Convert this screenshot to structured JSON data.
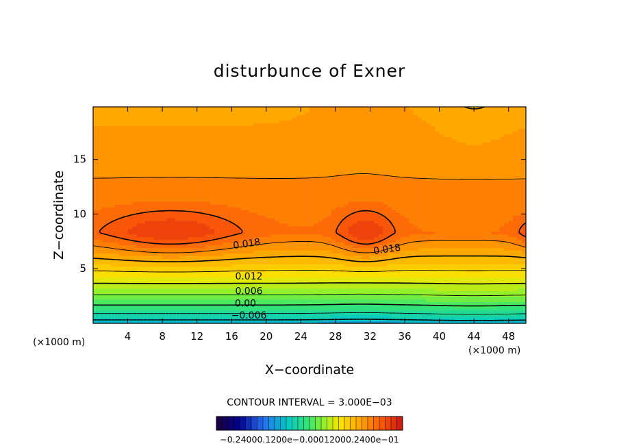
{
  "chart_data": {
    "type": "filled-contour",
    "title": "disturbunce of Exner",
    "xlabel": "X−coordinate",
    "ylabel": "Z−coordinate",
    "x_unit": "(×1000 m)",
    "y_unit": "(×1000 m)",
    "xlim": [
      0,
      50
    ],
    "ylim": [
      0,
      19.8
    ],
    "x_ticks": [
      4,
      8,
      12,
      16,
      20,
      24,
      28,
      32,
      36,
      40,
      44,
      48
    ],
    "y_ticks": [
      5,
      10,
      15
    ],
    "contour_interval_label": "CONTOUR INTERVAL = 3.000E−03",
    "contour_labels": [
      {
        "text": "0.018",
        "x": 17.8,
        "z": 7.0
      },
      {
        "text": "0.018",
        "x": 34.0,
        "z": 6.5
      },
      {
        "text": "0.012",
        "x": 18.0,
        "z": 4.0
      },
      {
        "text": "0.006",
        "x": 18.0,
        "z": 2.65
      },
      {
        "text": "0.00",
        "x": 17.6,
        "z": 1.55
      },
      {
        "text": "−0.006",
        "x": 18.0,
        "z": 0.45
      }
    ],
    "colorbar": {
      "min": -0.024,
      "max": 0.024,
      "labels_text": "−0.24000.1200e−0.00012000.2400e−01"
    },
    "field_summary": {
      "max_regions": [
        {
          "x_center": 9,
          "z_center": 8.3,
          "approx_max": 0.021
        },
        {
          "x_center": 31.5,
          "z_center": 8.3,
          "approx_max": 0.021
        },
        {
          "x_center": 50,
          "z_center": 8.3,
          "approx_max": 0.019
        }
      ],
      "bottom_value": -0.009,
      "top_value": 0.013,
      "min_labeled_level": -0.006,
      "max_labeled_level": 0.018
    }
  }
}
